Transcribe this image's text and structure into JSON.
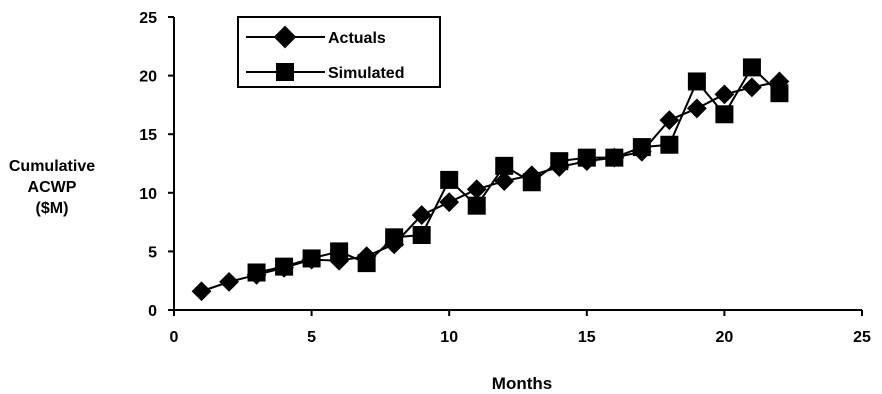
{
  "chart_data": {
    "type": "line",
    "title": "",
    "xlabel": "Months",
    "ylabel_lines": [
      "Cumulative",
      "ACWP",
      "($M)"
    ],
    "xlim": [
      0,
      25
    ],
    "ylim": [
      0,
      25
    ],
    "x_ticks": [
      0,
      5,
      10,
      15,
      20,
      25
    ],
    "y_ticks": [
      0,
      5,
      10,
      15,
      20,
      25
    ],
    "grid": false,
    "legend_position": "top-left",
    "series": [
      {
        "name": "Actuals",
        "marker": "diamond",
        "color": "#000000",
        "x": [
          1,
          2,
          3,
          4,
          5,
          6,
          7,
          8,
          9,
          10,
          11,
          12,
          13,
          14,
          15,
          16,
          17,
          18,
          19,
          20,
          21,
          22
        ],
        "y": [
          1.6,
          2.4,
          3.0,
          3.6,
          4.3,
          4.2,
          4.6,
          5.6,
          8.1,
          9.2,
          10.3,
          11.0,
          11.5,
          12.2,
          12.7,
          13.0,
          13.5,
          16.2,
          17.2,
          18.4,
          19.0,
          19.5
        ]
      },
      {
        "name": "Simulated",
        "marker": "square",
        "color": "#000000",
        "x": [
          3,
          4,
          5,
          6,
          7,
          8,
          9,
          10,
          11,
          12,
          13,
          14,
          15,
          16,
          17,
          18,
          19,
          20,
          21,
          22
        ],
        "y": [
          3.2,
          3.7,
          4.4,
          5.0,
          4.0,
          6.2,
          6.4,
          11.1,
          8.9,
          12.3,
          10.9,
          12.7,
          13.0,
          13.0,
          13.9,
          14.1,
          19.5,
          16.7,
          20.7,
          18.5
        ]
      }
    ]
  }
}
